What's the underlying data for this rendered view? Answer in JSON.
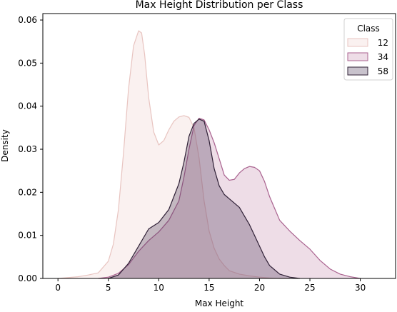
{
  "chart_data": {
    "type": "area",
    "title": "Max Height Distribution per Class",
    "xlabel": "Max Height",
    "ylabel": "Density",
    "xlim": [
      -1.5,
      33.5
    ],
    "ylim": [
      0,
      0.0615
    ],
    "xticks": [
      0,
      5,
      10,
      15,
      20,
      25,
      30
    ],
    "xtick_labels": [
      "0",
      "5",
      "10",
      "15",
      "20",
      "25",
      "30"
    ],
    "yticks": [
      0,
      0.01,
      0.02,
      0.03,
      0.04,
      0.05,
      0.06
    ],
    "ytick_labels": [
      "0.00",
      "0.01",
      "0.02",
      "0.03",
      "0.04",
      "0.05",
      "0.06"
    ],
    "grid": false,
    "legend": {
      "title": "Class",
      "placement": "top-right"
    },
    "series": [
      {
        "name": "12",
        "fill_color": "#f2d8d4",
        "line_color": "#e8c4c0",
        "fill_opacity": 0.35,
        "x": [
          0,
          2,
          3,
          4,
          5,
          5.5,
          6,
          6.5,
          7,
          7.5,
          8,
          8.3,
          8.6,
          9,
          9.5,
          10,
          10.5,
          11,
          11.5,
          12,
          12.5,
          13,
          13.5,
          14,
          14.5,
          15,
          15.5,
          16,
          16.5,
          17,
          18,
          19,
          20,
          21,
          22,
          23
        ],
        "y": [
          0,
          0.0004,
          0.0008,
          0.0013,
          0.004,
          0.008,
          0.016,
          0.029,
          0.044,
          0.054,
          0.0575,
          0.057,
          0.052,
          0.042,
          0.034,
          0.031,
          0.032,
          0.0345,
          0.0365,
          0.0375,
          0.0378,
          0.0374,
          0.035,
          0.028,
          0.018,
          0.011,
          0.007,
          0.0045,
          0.003,
          0.0018,
          0.001,
          0.0006,
          0.0003,
          0.0001,
          0,
          0
        ]
      },
      {
        "name": "34",
        "fill_color": "#c78fb0",
        "line_color": "#a9628f",
        "fill_opacity": 0.3,
        "x": [
          4,
          5,
          6,
          7,
          8,
          9,
          10,
          11,
          12,
          12.5,
          13,
          13.5,
          14,
          14.5,
          15,
          15.5,
          16,
          16.5,
          17,
          17.5,
          18,
          18.5,
          19,
          19.5,
          20,
          20.5,
          21,
          22,
          23,
          24,
          25,
          26,
          27,
          28,
          29,
          30
        ],
        "y": [
          0,
          0.0003,
          0.0012,
          0.0032,
          0.0063,
          0.0088,
          0.0108,
          0.0135,
          0.018,
          0.0235,
          0.03,
          0.0355,
          0.0372,
          0.0368,
          0.0345,
          0.0315,
          0.0278,
          0.024,
          0.0228,
          0.023,
          0.0245,
          0.0255,
          0.026,
          0.0258,
          0.025,
          0.0225,
          0.019,
          0.0135,
          0.011,
          0.0088,
          0.0068,
          0.0042,
          0.0022,
          0.001,
          0.0004,
          0
        ]
      },
      {
        "name": "58",
        "fill_color": "#4a3656",
        "line_color": "#2f2036",
        "fill_opacity": 0.3,
        "x": [
          5,
          6,
          7,
          8,
          9,
          10,
          11,
          12,
          12.5,
          13,
          13.5,
          14,
          14.5,
          15,
          15.5,
          16,
          16.5,
          17,
          17.5,
          18,
          18.5,
          19,
          19.5,
          20,
          20.5,
          21,
          22,
          23,
          24
        ],
        "y": [
          0,
          0.0008,
          0.0035,
          0.0075,
          0.0115,
          0.013,
          0.016,
          0.022,
          0.027,
          0.033,
          0.036,
          0.037,
          0.0365,
          0.032,
          0.0255,
          0.0215,
          0.0195,
          0.0185,
          0.0175,
          0.0165,
          0.0145,
          0.0125,
          0.01,
          0.0075,
          0.005,
          0.003,
          0.001,
          0.0003,
          0
        ]
      }
    ]
  }
}
